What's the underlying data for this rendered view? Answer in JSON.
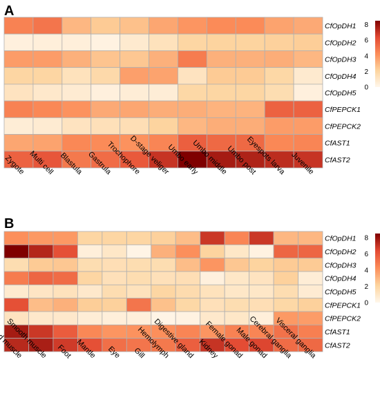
{
  "chart_data": [
    {
      "type": "heatmap",
      "panel_label": "A",
      "rows": [
        "CfOpDH1",
        "CfOpDH2",
        "CfOpDH3",
        "CfOpDH4",
        "CfOpDH5",
        "CfPEPCK1",
        "CfPEPCK2",
        "CfAST1",
        "CfAST2"
      ],
      "columns": [
        "Zygote",
        "Multi cell",
        "Blastula",
        "Gastrula",
        "Trochophore",
        "D-stage veliger",
        "Umbo early",
        "Umbo middle",
        "Umbo post",
        "Eyespots larva",
        "Juvenile"
      ],
      "values": [
        [
          4.6,
          5.0,
          3.0,
          2.4,
          2.7,
          3.5,
          4.0,
          4.3,
          4.3,
          3.6,
          3.4
        ],
        [
          0.4,
          0.5,
          0.5,
          0.3,
          0.8,
          1.3,
          2.0,
          2.1,
          2.1,
          2.2,
          2.3
        ],
        [
          3.8,
          3.8,
          3.2,
          2.6,
          2.5,
          3.2,
          4.8,
          3.2,
          3.2,
          3.3,
          3.0
        ],
        [
          2.0,
          2.0,
          1.3,
          1.8,
          3.7,
          3.6,
          1.2,
          2.4,
          2.4,
          1.9,
          0.8
        ],
        [
          1.2,
          0.9,
          0.7,
          0.4,
          0.6,
          0.6,
          1.9,
          2.0,
          2.0,
          1.6,
          0.4
        ],
        [
          4.6,
          4.4,
          4.1,
          3.4,
          3.5,
          3.3,
          3.3,
          3.1,
          3.1,
          5.6,
          5.6
        ],
        [
          0.6,
          0.7,
          1.2,
          1.4,
          1.5,
          2.1,
          3.0,
          3.3,
          3.3,
          3.8,
          3.8
        ],
        [
          3.5,
          3.6,
          4.4,
          4.3,
          4.1,
          4.5,
          5.7,
          5.4,
          5.4,
          4.4,
          4.5
        ],
        [
          5.6,
          6.0,
          4.9,
          5.3,
          5.9,
          7.0,
          8.5,
          7.7,
          7.5,
          7.2,
          7.0
        ]
      ],
      "colorbar": {
        "min": 0,
        "max": 8.5,
        "ticks": [
          0,
          2,
          4,
          6,
          8
        ]
      }
    },
    {
      "type": "heatmap",
      "panel_label": "B",
      "rows": [
        "CfOpDH1",
        "CfOpDH2",
        "CfOpDH3",
        "CfOpDH4",
        "CfOpDH5",
        "CfPEPCK1",
        "CfPEPCK2",
        "CfAST1",
        "CfAST2"
      ],
      "columns": [
        "Striated  muscle",
        "Smooth muscle",
        "Foot",
        "Mantle",
        "Eye",
        "Gill",
        "Hemolymph",
        "Digestive gland",
        "Kidney",
        "Female gonad",
        "Male gonad",
        "Cerebral ganglia",
        "Visceral ganglia"
      ],
      "values": [
        [
          4.2,
          3.9,
          3.9,
          2.0,
          2.0,
          2.0,
          2.2,
          2.8,
          6.9,
          4.5,
          6.9,
          3.0,
          3.0
        ],
        [
          8.5,
          7.4,
          6.2,
          0.5,
          1.0,
          0.2,
          3.2,
          4.2,
          2.1,
          1.0,
          0.3,
          5.5,
          5.5
        ],
        [
          1.6,
          2.4,
          2.5,
          1.6,
          1.5,
          1.6,
          1.6,
          2.8,
          4.0,
          2.5,
          2.1,
          2.4,
          2.4
        ],
        [
          4.8,
          5.5,
          5.3,
          2.0,
          1.4,
          1.6,
          1.4,
          1.5,
          0.4,
          1.0,
          1.2,
          2.2,
          0.6
        ],
        [
          0.8,
          1.1,
          1.3,
          0.9,
          1.6,
          1.3,
          2.0,
          1.7,
          1.3,
          1.0,
          1.0,
          1.6,
          0.7
        ],
        [
          6.2,
          2.8,
          3.2,
          2.3,
          2.2,
          5.0,
          2.7,
          1.9,
          1.4,
          1.6,
          1.5,
          1.9,
          2.2
        ],
        [
          1.2,
          0.9,
          0.9,
          0.6,
          0.5,
          0.5,
          0.2,
          0.3,
          0.9,
          1.0,
          0.5,
          3.9,
          3.8
        ],
        [
          7.7,
          6.9,
          5.8,
          4.4,
          4.0,
          4.1,
          4.2,
          4.5,
          4.0,
          4.6,
          4.5,
          5.1,
          4.7
        ],
        [
          7.3,
          7.6,
          6.8,
          6.2,
          5.2,
          5.0,
          4.9,
          5.7,
          7.0,
          6.3,
          6.5,
          5.3,
          5.4
        ]
      ],
      "colorbar": {
        "min": 0,
        "max": 8.5,
        "ticks": [
          0,
          2,
          4,
          6,
          8
        ]
      }
    }
  ],
  "colors": {
    "low": "#fff7ec",
    "mid_low": "#fdd49e",
    "mid": "#fc8d59",
    "mid_high": "#e34a33",
    "high": "#7f0000",
    "grid": "#b0b0b0"
  }
}
